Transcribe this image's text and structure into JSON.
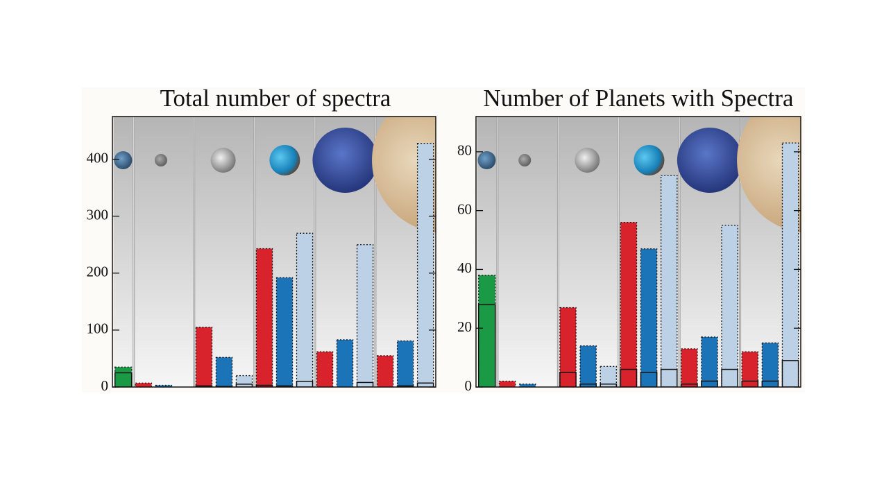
{
  "chart_data": [
    {
      "type": "bar",
      "title": "Total number of spectra",
      "categories": [
        null,
        null,
        null,
        null,
        null,
        null
      ],
      "series": [
        {
          "color": "#1a9a44",
          "values": [
            35,
            null,
            null,
            null,
            null,
            null
          ],
          "subset_values": [
            25,
            null,
            null,
            null,
            null,
            null
          ]
        },
        {
          "color": "#d8232c",
          "values": [
            null,
            7,
            105,
            243,
            62,
            55
          ],
          "subset_values": [
            null,
            null,
            2,
            3,
            0,
            0
          ]
        },
        {
          "color": "#1b74b8",
          "values": [
            null,
            3,
            52,
            192,
            83,
            81
          ],
          "subset_values": [
            null,
            null,
            1,
            2,
            0,
            2
          ]
        },
        {
          "color": "#bcd0e6",
          "values": [
            null,
            null,
            20,
            270,
            250,
            428
          ],
          "subset_values": [
            null,
            null,
            5,
            10,
            8,
            7
          ]
        }
      ],
      "ylim": [
        0,
        475
      ],
      "yticks": [
        0,
        100,
        200,
        300,
        400
      ]
    },
    {
      "type": "bar",
      "title": "Number of Planets with Spectra",
      "categories": [
        null,
        null,
        null,
        null,
        null,
        null
      ],
      "series": [
        {
          "color": "#1a9a44",
          "values": [
            38,
            null,
            null,
            null,
            null,
            null
          ],
          "subset_values": [
            28,
            null,
            null,
            null,
            null,
            null
          ]
        },
        {
          "color": "#d8232c",
          "values": [
            null,
            2,
            27,
            56,
            13,
            12
          ],
          "subset_values": [
            null,
            null,
            5,
            6,
            1,
            2
          ]
        },
        {
          "color": "#1b74b8",
          "values": [
            null,
            1,
            14,
            47,
            17,
            15
          ],
          "subset_values": [
            null,
            null,
            1,
            5,
            2,
            2
          ]
        },
        {
          "color": "#bcd0e6",
          "values": [
            null,
            null,
            7,
            72,
            55,
            83
          ],
          "subset_values": [
            null,
            null,
            1,
            6,
            6,
            9
          ]
        }
      ],
      "ylim": [
        0,
        92
      ],
      "yticks": [
        0,
        20,
        40,
        60,
        80
      ]
    }
  ]
}
